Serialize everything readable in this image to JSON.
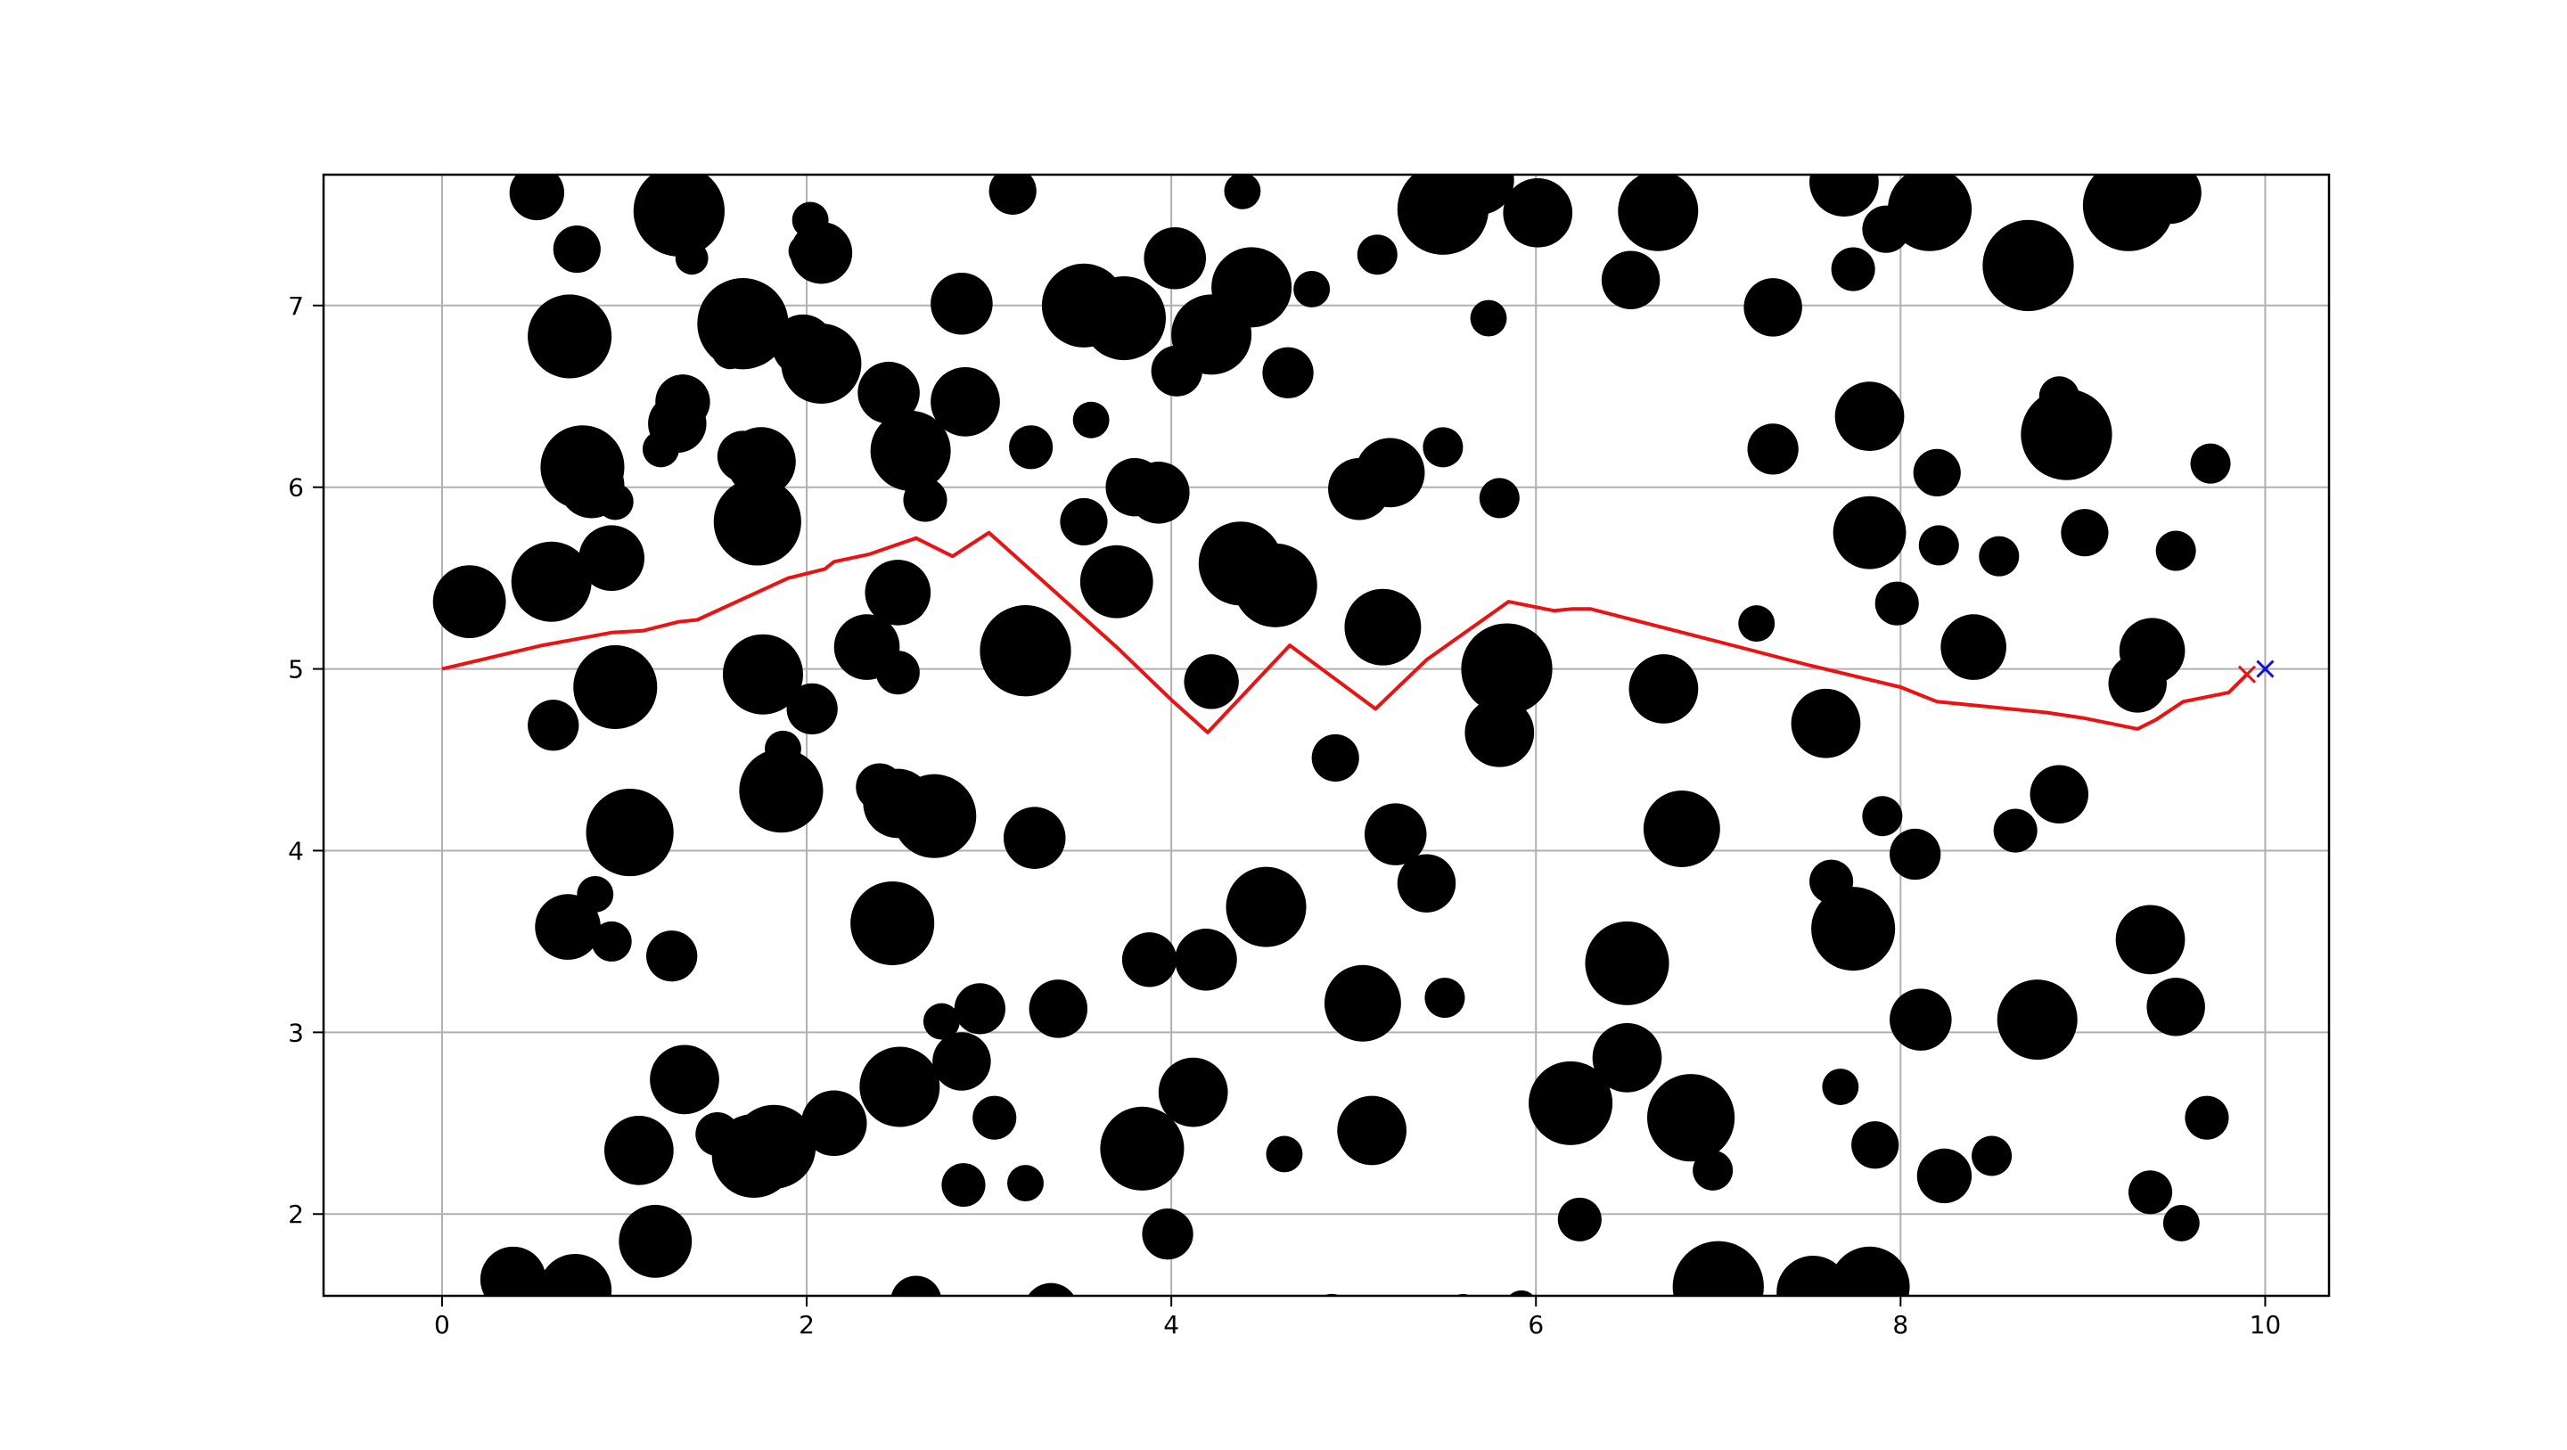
{
  "chart_data": {
    "type": "scatter",
    "title": "",
    "xlabel": "",
    "ylabel": "",
    "xlim": [
      -0.65,
      10.35
    ],
    "ylim": [
      1.55,
      7.72
    ],
    "xticks": [
      0,
      2,
      4,
      6,
      8,
      10
    ],
    "yticks": [
      2,
      3,
      4,
      5,
      6,
      7
    ],
    "xtick_labels": [
      "0",
      "2",
      "4",
      "6",
      "8",
      "10"
    ],
    "ytick_labels": [
      "2",
      "3",
      "4",
      "5",
      "6",
      "7"
    ],
    "grid": true,
    "obstacle_color": "#000000",
    "obstacles": [
      [
        0.52,
        7.62,
        0.15
      ],
      [
        0.74,
        7.31,
        0.13
      ],
      [
        1.3,
        7.52,
        0.25
      ],
      [
        1.37,
        7.26,
        0.09
      ],
      [
        2.02,
        7.47,
        0.1
      ],
      [
        2.08,
        7.29,
        0.17
      ],
      [
        1.99,
        7.3,
        0.09
      ],
      [
        0.7,
        6.83,
        0.23
      ],
      [
        1.65,
        6.9,
        0.25
      ],
      [
        1.58,
        6.75,
        0.1
      ],
      [
        1.98,
        6.78,
        0.17
      ],
      [
        2.08,
        6.68,
        0.22
      ],
      [
        2.85,
        7.01,
        0.17
      ],
      [
        3.52,
        7.0,
        0.23
      ],
      [
        3.74,
        6.93,
        0.23
      ],
      [
        4.02,
        7.26,
        0.17
      ],
      [
        4.22,
        6.84,
        0.22
      ],
      [
        4.44,
        7.1,
        0.22
      ],
      [
        4.77,
        7.09,
        0.1
      ],
      [
        4.39,
        7.63,
        0.1
      ],
      [
        3.13,
        7.63,
        0.13
      ],
      [
        4.03,
        6.64,
        0.14
      ],
      [
        4.64,
        6.63,
        0.14
      ],
      [
        5.13,
        7.28,
        0.11
      ],
      [
        5.49,
        7.53,
        0.25
      ],
      [
        5.69,
        7.69,
        0.19
      ],
      [
        6.01,
        7.51,
        0.19
      ],
      [
        5.74,
        6.93,
        0.1
      ],
      [
        6.52,
        7.14,
        0.16
      ],
      [
        6.67,
        7.52,
        0.22
      ],
      [
        7.3,
        6.99,
        0.16
      ],
      [
        7.69,
        7.68,
        0.19
      ],
      [
        7.74,
        7.2,
        0.12
      ],
      [
        7.92,
        7.42,
        0.13
      ],
      [
        8.16,
        7.53,
        0.23
      ],
      [
        8.7,
        7.22,
        0.25
      ],
      [
        9.25,
        7.55,
        0.25
      ],
      [
        9.48,
        7.62,
        0.17
      ],
      [
        0.15,
        5.37,
        0.2
      ],
      [
        0.6,
        5.48,
        0.22
      ],
      [
        0.77,
        6.11,
        0.23
      ],
      [
        0.82,
        6.01,
        0.18
      ],
      [
        0.93,
        5.61,
        0.18
      ],
      [
        0.95,
        5.92,
        0.1
      ],
      [
        1.32,
        6.47,
        0.15
      ],
      [
        1.29,
        6.35,
        0.16
      ],
      [
        1.2,
        6.21,
        0.1
      ],
      [
        1.65,
        6.17,
        0.14
      ],
      [
        1.75,
        6.14,
        0.19
      ],
      [
        1.73,
        5.81,
        0.24
      ],
      [
        2.45,
        6.52,
        0.17
      ],
      [
        2.57,
        6.2,
        0.22
      ],
      [
        2.65,
        5.93,
        0.12
      ],
      [
        2.87,
        6.47,
        0.19
      ],
      [
        3.23,
        6.22,
        0.12
      ],
      [
        3.56,
        6.37,
        0.1
      ],
      [
        3.52,
        5.81,
        0.13
      ],
      [
        3.8,
        6.0,
        0.16
      ],
      [
        3.93,
        5.97,
        0.17
      ],
      [
        3.7,
        5.48,
        0.2
      ],
      [
        4.38,
        5.58,
        0.23
      ],
      [
        4.57,
        5.46,
        0.23
      ],
      [
        5.03,
        5.99,
        0.17
      ],
      [
        5.2,
        6.08,
        0.19
      ],
      [
        5.49,
        6.22,
        0.11
      ],
      [
        5.8,
        5.94,
        0.11
      ],
      [
        5.16,
        5.23,
        0.21
      ],
      [
        0.61,
        4.69,
        0.14
      ],
      [
        0.95,
        4.9,
        0.23
      ],
      [
        1.76,
        4.97,
        0.22
      ],
      [
        2.03,
        4.78,
        0.14
      ],
      [
        2.33,
        5.12,
        0.18
      ],
      [
        2.5,
        5.42,
        0.18
      ],
      [
        2.5,
        4.98,
        0.12
      ],
      [
        3.2,
        5.1,
        0.25
      ],
      [
        4.22,
        4.93,
        0.15
      ],
      [
        5.84,
        5.0,
        0.25
      ],
      [
        5.8,
        4.65,
        0.19
      ],
      [
        6.7,
        4.89,
        0.19
      ],
      [
        7.21,
        5.25,
        0.1
      ],
      [
        7.59,
        4.7,
        0.19
      ],
      [
        7.98,
        5.36,
        0.12
      ],
      [
        8.4,
        5.12,
        0.18
      ],
      [
        9.3,
        4.92,
        0.16
      ],
      [
        9.38,
        5.1,
        0.18
      ],
      [
        8.2,
        6.08,
        0.13
      ],
      [
        8.21,
        5.68,
        0.11
      ],
      [
        8.54,
        5.62,
        0.11
      ],
      [
        7.83,
        5.75,
        0.2
      ],
      [
        7.83,
        6.39,
        0.19
      ],
      [
        7.3,
        6.21,
        0.14
      ],
      [
        8.87,
        6.5,
        0.11
      ],
      [
        8.91,
        6.29,
        0.25
      ],
      [
        9.01,
        5.75,
        0.13
      ],
      [
        9.51,
        5.65,
        0.11
      ],
      [
        9.7,
        6.13,
        0.11
      ],
      [
        1.03,
        4.1,
        0.24
      ],
      [
        0.69,
        3.58,
        0.18
      ],
      [
        0.84,
        3.76,
        0.1
      ],
      [
        0.93,
        3.5,
        0.11
      ],
      [
        1.26,
        3.42,
        0.14
      ],
      [
        1.86,
        4.33,
        0.23
      ],
      [
        1.87,
        4.56,
        0.1
      ],
      [
        2.4,
        4.35,
        0.13
      ],
      [
        2.5,
        4.26,
        0.19
      ],
      [
        2.7,
        4.19,
        0.23
      ],
      [
        2.47,
        3.6,
        0.23
      ],
      [
        3.25,
        4.07,
        0.17
      ],
      [
        2.74,
        3.06,
        0.1
      ],
      [
        2.95,
        3.13,
        0.14
      ],
      [
        2.85,
        2.84,
        0.16
      ],
      [
        3.38,
        3.13,
        0.16
      ],
      [
        3.88,
        3.4,
        0.15
      ],
      [
        4.19,
        3.4,
        0.17
      ],
      [
        4.52,
        3.69,
        0.22
      ],
      [
        4.9,
        4.51,
        0.13
      ],
      [
        5.23,
        4.09,
        0.17
      ],
      [
        5.4,
        3.82,
        0.16
      ],
      [
        5.5,
        3.19,
        0.11
      ],
      [
        5.05,
        3.16,
        0.21
      ],
      [
        6.5,
        3.38,
        0.23
      ],
      [
        6.5,
        2.86,
        0.19
      ],
      [
        6.8,
        4.12,
        0.21
      ],
      [
        7.62,
        3.83,
        0.12
      ],
      [
        7.74,
        3.57,
        0.23
      ],
      [
        7.9,
        4.19,
        0.11
      ],
      [
        8.08,
        3.98,
        0.14
      ],
      [
        8.11,
        3.07,
        0.17
      ],
      [
        8.75,
        3.07,
        0.22
      ],
      [
        8.63,
        4.11,
        0.12
      ],
      [
        8.87,
        4.31,
        0.16
      ],
      [
        9.37,
        3.51,
        0.19
      ],
      [
        9.51,
        3.14,
        0.16
      ],
      [
        1.33,
        2.74,
        0.19
      ],
      [
        1.08,
        2.35,
        0.19
      ],
      [
        1.51,
        2.44,
        0.12
      ],
      [
        1.71,
        2.32,
        0.23
      ],
      [
        1.82,
        2.37,
        0.23
      ],
      [
        2.15,
        2.5,
        0.18
      ],
      [
        2.51,
        2.7,
        0.22
      ],
      [
        3.03,
        2.53,
        0.12
      ],
      [
        2.86,
        2.16,
        0.12
      ],
      [
        3.2,
        2.17,
        0.1
      ],
      [
        3.84,
        2.36,
        0.23
      ],
      [
        4.12,
        2.67,
        0.19
      ],
      [
        4.62,
        2.33,
        0.1
      ],
      [
        5.1,
        2.46,
        0.19
      ],
      [
        6.19,
        2.61,
        0.23
      ],
      [
        6.85,
        2.53,
        0.24
      ],
      [
        6.97,
        2.24,
        0.11
      ],
      [
        7.67,
        2.7,
        0.1
      ],
      [
        7.86,
        2.38,
        0.13
      ],
      [
        8.24,
        2.21,
        0.15
      ],
      [
        8.5,
        2.32,
        0.11
      ],
      [
        9.37,
        2.12,
        0.12
      ],
      [
        9.54,
        1.95,
        0.1
      ],
      [
        9.68,
        2.53,
        0.12
      ],
      [
        1.17,
        1.85,
        0.2
      ],
      [
        0.39,
        1.64,
        0.18
      ],
      [
        0.73,
        1.58,
        0.2
      ],
      [
        3.98,
        1.89,
        0.14
      ],
      [
        6.24,
        1.97,
        0.12
      ],
      [
        2.6,
        1.52,
        0.14
      ],
      [
        3.34,
        1.47,
        0.15
      ],
      [
        4.88,
        1.44,
        0.12
      ],
      [
        5.6,
        1.47,
        0.09
      ],
      [
        5.92,
        1.49,
        0.09
      ],
      [
        7.0,
        1.6,
        0.25
      ],
      [
        7.52,
        1.57,
        0.2
      ],
      [
        7.83,
        1.6,
        0.22
      ]
    ],
    "path": {
      "name": "path",
      "color": "#ee1111",
      "x": [
        0.0,
        0.55,
        0.93,
        1.1,
        1.3,
        1.4,
        1.9,
        2.1,
        2.15,
        2.34,
        2.6,
        2.8,
        3.0,
        3.7,
        4.0,
        4.2,
        4.65,
        5.12,
        5.4,
        5.85,
        6.1,
        6.2,
        6.3,
        7.0,
        7.5,
        8.0,
        8.2,
        8.8,
        9.0,
        9.3,
        9.4,
        9.55,
        9.8,
        9.9
      ],
      "y": [
        5.0,
        5.13,
        5.2,
        5.21,
        5.26,
        5.27,
        5.5,
        5.55,
        5.59,
        5.63,
        5.72,
        5.62,
        5.75,
        5.12,
        4.83,
        4.65,
        5.13,
        4.78,
        5.05,
        5.37,
        5.32,
        5.33,
        5.33,
        5.15,
        5.02,
        4.9,
        4.82,
        4.76,
        4.73,
        4.67,
        4.72,
        4.82,
        4.87,
        4.97
      ]
    },
    "start_marker": {
      "x": 9.9,
      "y": 4.97,
      "color": "#ee1111"
    },
    "goal_marker": {
      "x": 10.0,
      "y": 5.0,
      "color": "#1111ee"
    }
  }
}
